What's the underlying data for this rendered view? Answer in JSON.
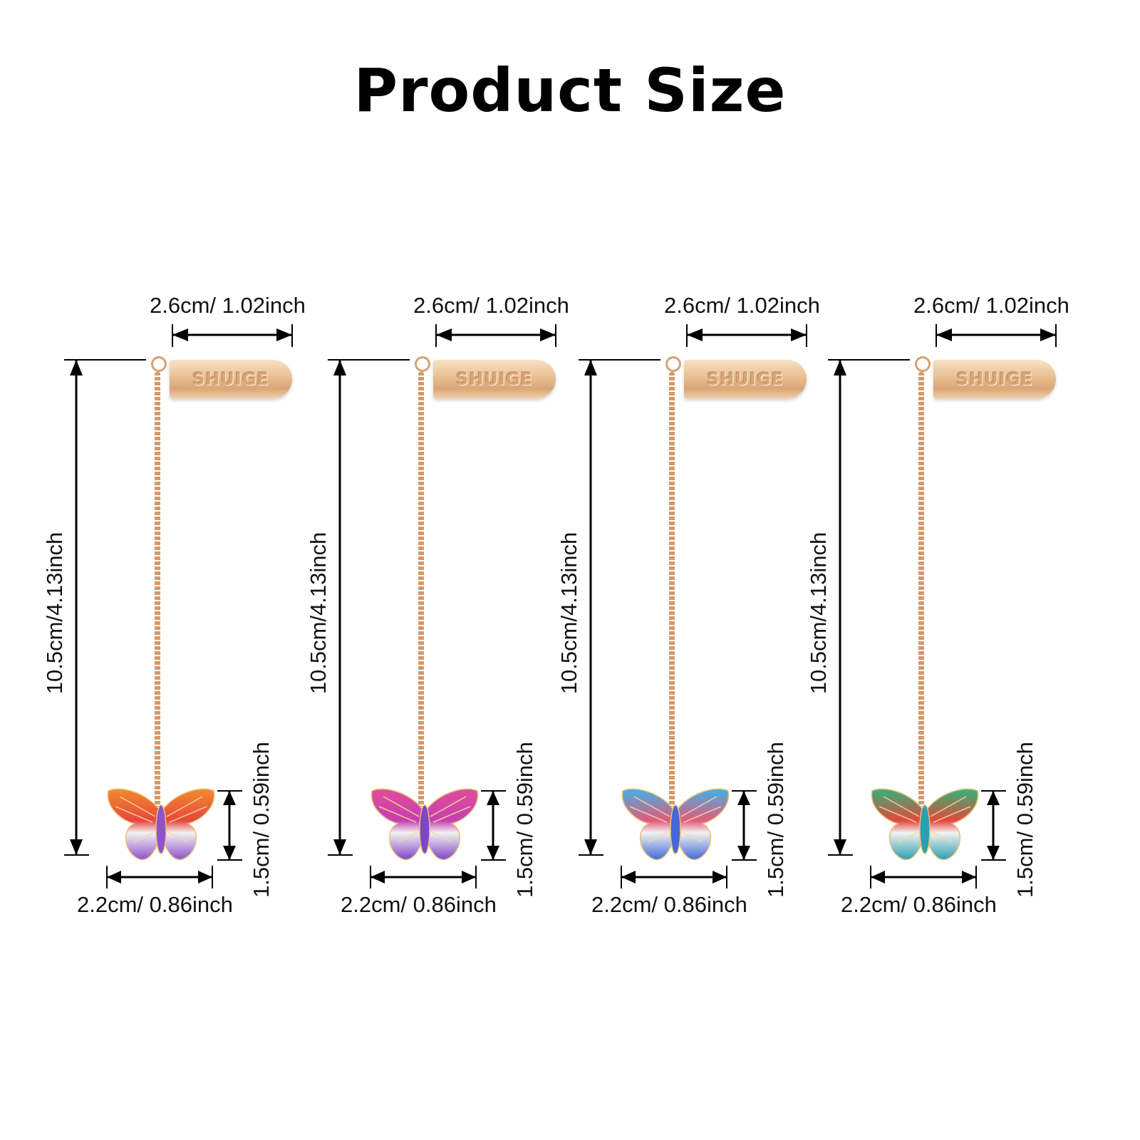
{
  "title": "Product Size",
  "items": [
    {
      "tab_text": "SHUIGE",
      "tab_width_label": "2.6cm/ 1.02inch",
      "length_label": "10.5cm/4.13inch",
      "charm_height_label": "1.5cm/ 0.59inch",
      "charm_width_label": "2.2cm/ 0.86inch",
      "colors": {
        "top": "#f28a2e",
        "mid": "#e8463d",
        "bottom": "#8f52c9"
      }
    },
    {
      "tab_text": "SHUIGE",
      "tab_width_label": "2.6cm/ 1.02inch",
      "length_label": "10.5cm/4.13inch",
      "charm_height_label": "1.5cm/ 0.59inch",
      "charm_width_label": "2.2cm/ 0.86inch",
      "colors": {
        "top": "#e04d9a",
        "mid": "#c53fb0",
        "bottom": "#7d46c8"
      }
    },
    {
      "tab_text": "SHUIGE",
      "tab_width_label": "2.6cm/ 1.02inch",
      "length_label": "10.5cm/4.13inch",
      "charm_height_label": "1.5cm/ 0.59inch",
      "charm_width_label": "2.2cm/ 0.86inch",
      "colors": {
        "top": "#3fb2e8",
        "mid": "#e45a7a",
        "bottom": "#4468d8"
      }
    },
    {
      "tab_text": "SHUIGE",
      "tab_width_label": "2.6cm/ 1.02inch",
      "length_label": "10.5cm/4.13inch",
      "charm_height_label": "1.5cm/ 0.59inch",
      "charm_width_label": "2.2cm/ 0.86inch",
      "colors": {
        "top": "#2fb57a",
        "mid": "#e4463c",
        "bottom": "#2a9fb0"
      }
    }
  ]
}
